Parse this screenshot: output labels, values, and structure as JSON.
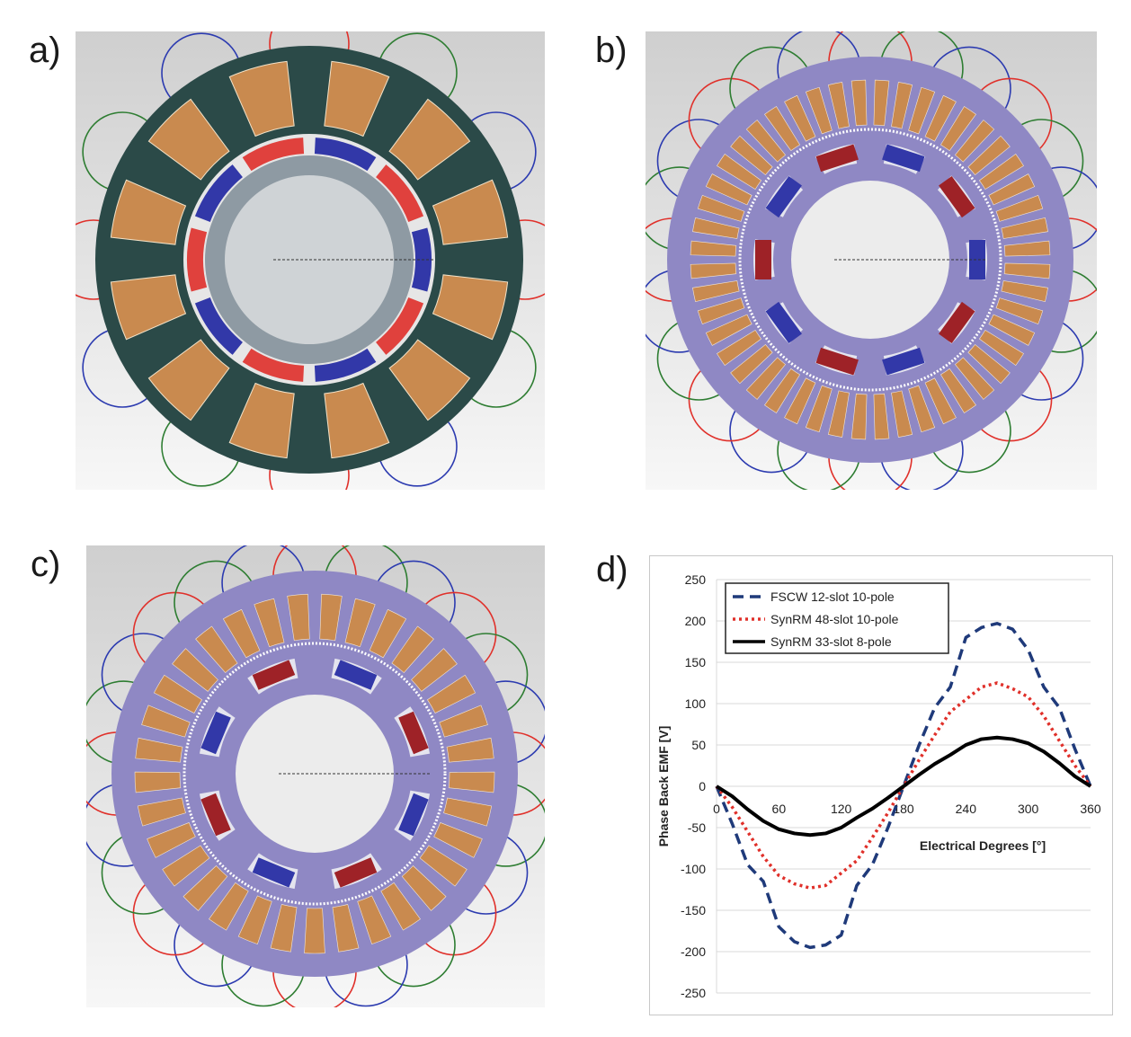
{
  "panels": [
    {
      "label": "a)",
      "rotor": "surface-pm",
      "stator_slots": 12,
      "rotor_poles": 10
    },
    {
      "label": "b)",
      "rotor": "synrm",
      "stator_slots": 48
    },
    {
      "label": "c)",
      "rotor": "synrm",
      "stator_slots": 33
    },
    {
      "label": "d)"
    }
  ],
  "colors": {
    "stator_dark": "#2b4a48",
    "stator_purple": "#8f88c4",
    "coil": "#c98a4f",
    "magnet_blue": "#3238a8",
    "magnet_red": "#e0413d",
    "magnet_darkred": "#9e2227",
    "phase_a": "#e0302a",
    "phase_b": "#2e7d32",
    "phase_c": "#2c3bb0"
  },
  "chart_data": {
    "type": "line",
    "xlabel": "Electrical Degrees [°]",
    "ylabel": "Phase Back EMF [V]",
    "xlim": [
      0,
      360
    ],
    "ylim": [
      -250,
      250
    ],
    "xticks": [
      0,
      60,
      120,
      180,
      240,
      300,
      360
    ],
    "yticks": [
      250,
      200,
      150,
      100,
      50,
      0,
      -50,
      -100,
      -150,
      -200,
      -250
    ],
    "grid": "horizontal",
    "legend_position": "top-left",
    "x": [
      0,
      15,
      30,
      45,
      60,
      75,
      90,
      105,
      120,
      135,
      150,
      165,
      180,
      195,
      210,
      225,
      240,
      255,
      270,
      285,
      300,
      315,
      330,
      345,
      360
    ],
    "series": [
      {
        "name": "FSCW   12-slot 10-pole",
        "color": "#1f3a7a",
        "dash": "dashed",
        "values": [
          0,
          -45,
          -95,
          -115,
          -170,
          -188,
          -195,
          -192,
          -180,
          -120,
          -95,
          -50,
          0,
          50,
          95,
          120,
          180,
          192,
          197,
          190,
          165,
          120,
          95,
          45,
          0
        ]
      },
      {
        "name": "SynRM 48-slot 10-pole",
        "color": "#e0302a",
        "dash": "dotted",
        "values": [
          0,
          -25,
          -55,
          -85,
          -108,
          -118,
          -123,
          -120,
          -105,
          -90,
          -62,
          -32,
          0,
          32,
          62,
          90,
          105,
          120,
          125,
          118,
          108,
          85,
          55,
          25,
          0
        ]
      },
      {
        "name": "SynRM 33-slot  8-pole",
        "color": "#000000",
        "dash": "solid",
        "values": [
          0,
          -12,
          -28,
          -42,
          -52,
          -57,
          -59,
          -57,
          -50,
          -38,
          -27,
          -14,
          0,
          14,
          27,
          38,
          50,
          57,
          59,
          57,
          52,
          42,
          28,
          12,
          0
        ]
      }
    ]
  }
}
